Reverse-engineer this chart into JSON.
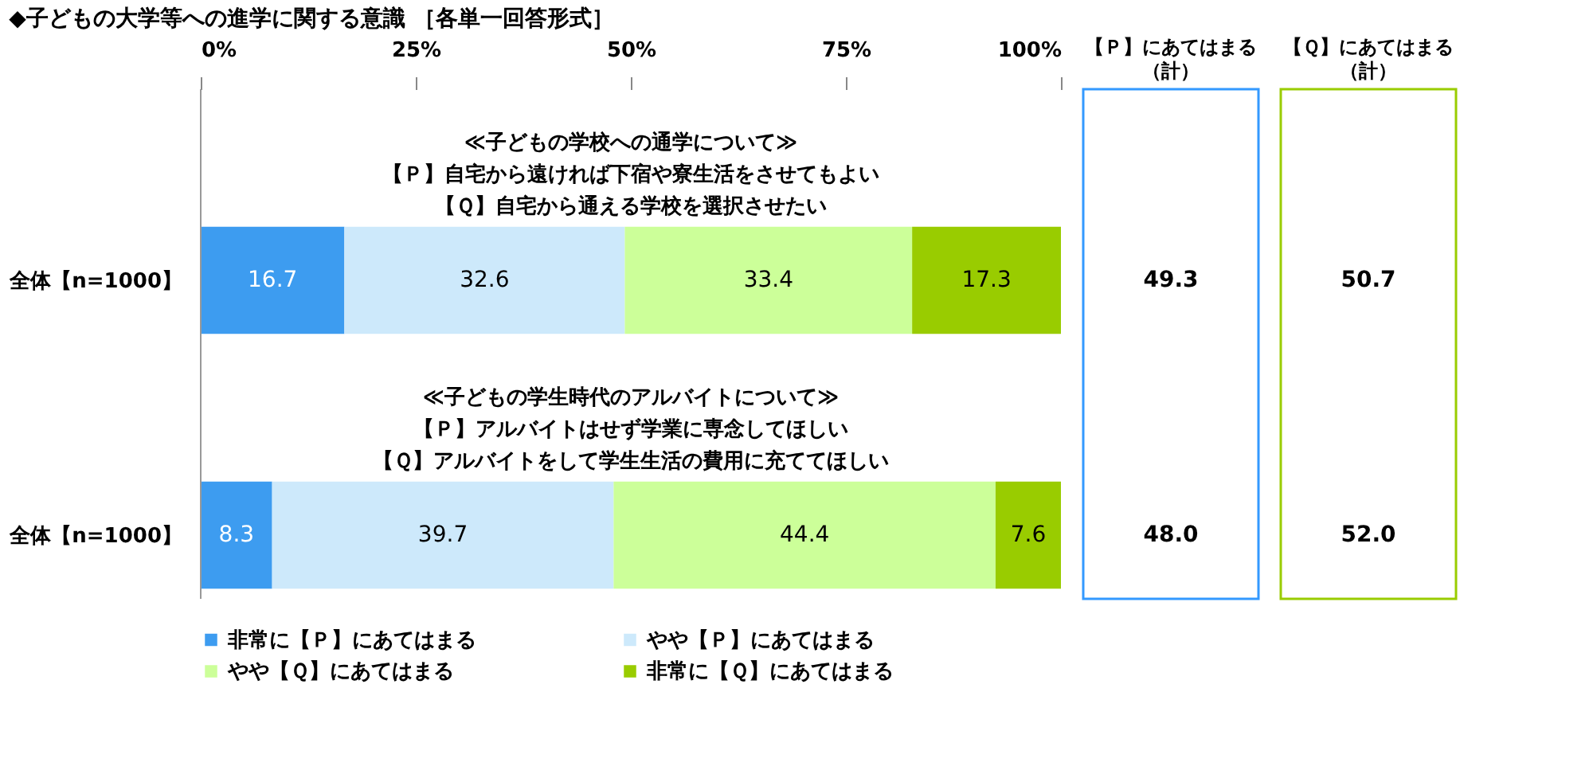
{
  "chart_data": [
    {
      "type": "bar",
      "orientation": "horizontal",
      "stacked": true,
      "title": "◆子どもの大学等への進学に関する意識 ［各単一回答形式］",
      "categories": [
        "全体【n=1000】",
        "全体【n=1000】"
      ],
      "series": [
        {
          "name": "非常に【Ｐ】にあてはまる",
          "color": "#3d9cf0",
          "values": [
            16.7,
            8.3
          ]
        },
        {
          "name": "やや【Ｐ】にあてはまる",
          "color": "#cde9fb",
          "values": [
            32.6,
            39.7
          ]
        },
        {
          "name": "やや【Ｑ】にあてはまる",
          "color": "#ccff99",
          "values": [
            33.4,
            44.4
          ]
        },
        {
          "name": "非常に【Ｑ】にあてはまる",
          "color": "#99cc00",
          "values": [
            17.3,
            7.6
          ]
        }
      ],
      "xlim": [
        0,
        100
      ],
      "xticks": [
        {
          "value": 0,
          "label": "0%"
        },
        {
          "value": 25,
          "label": "25%"
        },
        {
          "value": 50,
          "label": "50%"
        },
        {
          "value": 75,
          "label": "75%"
        },
        {
          "value": 100,
          "label": "100%"
        }
      ],
      "data_labels": true,
      "legend": "bottom",
      "grid": false,
      "annotations": [
        "≪子どもの学校への通学について≫",
        "【Ｐ】自宅から遠ければ下宿や寮生活をさせてもよい",
        "【Ｑ】自宅から通える学校を選択させたい",
        "≪子どもの学生時代のアルバイトについて≫",
        "【Ｐ】アルバイトはせず学業に専念してほしい",
        "【Ｑ】アルバイトをして学生生活の費用に充ててほしい"
      ]
    },
    {
      "type": "other",
      "title": "【Ｐ】にあてはまる",
      "subtitle": "（計）",
      "value_labels": [
        "49.3",
        "48.0"
      ],
      "color": "#3399ff"
    },
    {
      "type": "other",
      "title": "【Ｑ】にあてはまる",
      "subtitle": "（計）",
      "value_labels": [
        "50.7",
        "52.0"
      ],
      "color": "#99cc00"
    }
  ]
}
